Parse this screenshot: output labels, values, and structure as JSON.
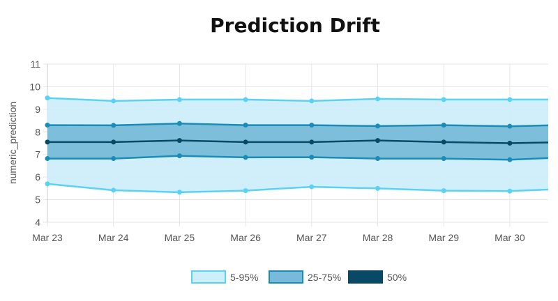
{
  "chart_data": {
    "type": "area",
    "title": "Prediction Drift",
    "xlabel": "",
    "ylabel": "numeric_prediction",
    "ylim": [
      4,
      11
    ],
    "yticks": [
      4,
      5,
      6,
      7,
      8,
      9,
      10,
      11
    ],
    "categories": [
      "Mar 23",
      "Mar 24",
      "Mar 25",
      "Mar 26",
      "Mar 27",
      "Mar 28",
      "Mar 29",
      "Mar 30"
    ],
    "x_end": "Mar 31",
    "grid": true,
    "legend_position": "bottom",
    "bands": [
      {
        "name": "5-95%",
        "lower": [
          5.7,
          5.42,
          5.33,
          5.4,
          5.57,
          5.5,
          5.4,
          5.38,
          5.45
        ],
        "upper": [
          9.5,
          9.37,
          9.43,
          9.43,
          9.37,
          9.46,
          9.43,
          9.43,
          9.43
        ],
        "fill": "#cdeefb",
        "stroke": "#5ad2f4"
      },
      {
        "name": "25-75%",
        "lower": [
          6.82,
          6.82,
          6.94,
          6.87,
          6.88,
          6.82,
          6.82,
          6.77,
          6.84
        ],
        "upper": [
          8.3,
          8.29,
          8.37,
          8.3,
          8.3,
          8.26,
          8.3,
          8.25,
          8.29
        ],
        "fill": "#78bad9",
        "stroke": "#1a8cb6"
      }
    ],
    "median": {
      "name": "50%",
      "values": [
        7.55,
        7.55,
        7.62,
        7.55,
        7.55,
        7.62,
        7.55,
        7.5,
        7.53
      ],
      "stroke": "#0a4966"
    }
  }
}
